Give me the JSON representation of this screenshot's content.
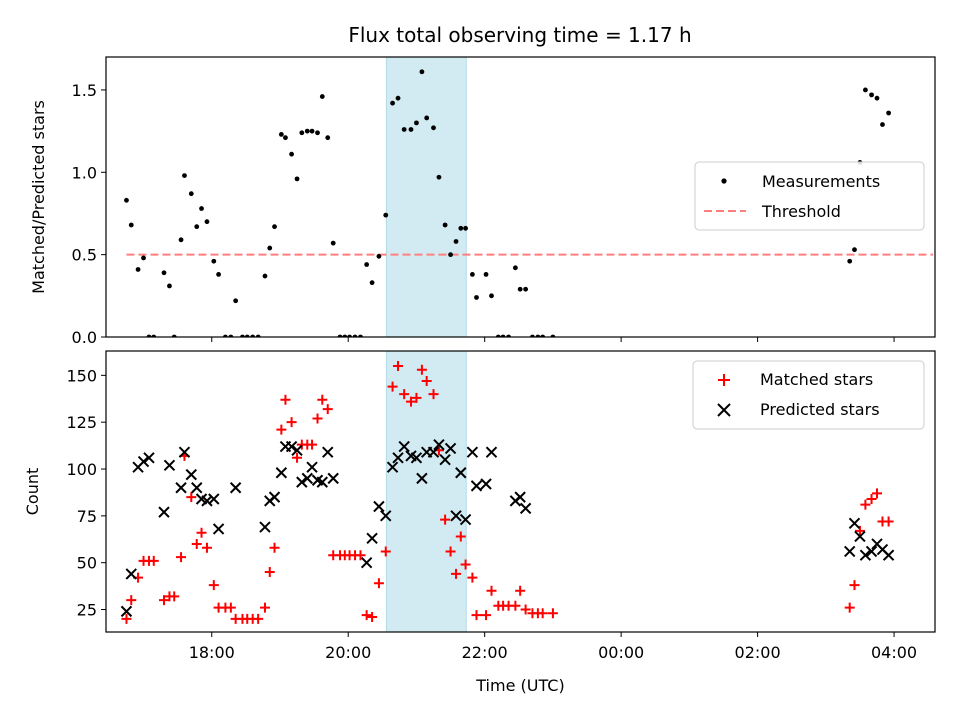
{
  "figure_title": "Flux total observing time = 1.17 h",
  "colors": {
    "measurement": "#000000",
    "threshold": "#ff7f7f",
    "matched": "#ff0000",
    "predicted": "#000000",
    "highlight": "#add8e6"
  },
  "chart_data": [
    {
      "type": "scatter",
      "panel": "top",
      "ylabel": "Matched/Predicted stars",
      "xlabel": "",
      "x_unit": "hours since 00:00 on the first day (UTC)",
      "xlim": [
        16.45,
        28.6
      ],
      "ylim": [
        0.0,
        1.7
      ],
      "x_ticks": [
        18,
        20,
        22,
        24,
        26,
        28
      ],
      "x_tick_labels": [
        "18:00",
        "20:00",
        "22:00",
        "00:00",
        "02:00",
        "04:00"
      ],
      "y_ticks": [
        0.0,
        0.5,
        1.0,
        1.5
      ],
      "y_tick_labels": [
        "0.0",
        "0.5",
        "1.0",
        "1.5"
      ],
      "shaded_interval": [
        20.56,
        21.73
      ],
      "threshold": {
        "name": "Threshold",
        "y": 0.5,
        "x_range": [
          16.75,
          28.9
        ]
      },
      "legend": {
        "position": "center-right",
        "entries": [
          "Measurements",
          "Threshold"
        ]
      },
      "series": [
        {
          "name": "Measurements",
          "points": [
            [
              16.75,
              0.83
            ],
            [
              16.82,
              0.68
            ],
            [
              16.92,
              0.41
            ],
            [
              17.0,
              0.48
            ],
            [
              17.08,
              0.0
            ],
            [
              17.15,
              0.0
            ],
            [
              17.3,
              0.39
            ],
            [
              17.38,
              0.31
            ],
            [
              17.45,
              0.0
            ],
            [
              17.55,
              0.59
            ],
            [
              17.6,
              0.98
            ],
            [
              17.7,
              0.87
            ],
            [
              17.78,
              0.67
            ],
            [
              17.85,
              0.78
            ],
            [
              17.93,
              0.7
            ],
            [
              18.03,
              0.46
            ],
            [
              18.1,
              0.38
            ],
            [
              18.2,
              0.0
            ],
            [
              18.28,
              0.0
            ],
            [
              18.35,
              0.22
            ],
            [
              18.45,
              0.0
            ],
            [
              18.52,
              0.0
            ],
            [
              18.6,
              0.0
            ],
            [
              18.68,
              0.0
            ],
            [
              18.78,
              0.37
            ],
            [
              18.85,
              0.54
            ],
            [
              18.92,
              0.67
            ],
            [
              19.02,
              1.23
            ],
            [
              19.08,
              1.21
            ],
            [
              19.17,
              1.11
            ],
            [
              19.25,
              0.96
            ],
            [
              19.32,
              1.24
            ],
            [
              19.4,
              1.25
            ],
            [
              19.47,
              1.25
            ],
            [
              19.55,
              1.24
            ],
            [
              19.62,
              1.46
            ],
            [
              19.7,
              1.21
            ],
            [
              19.78,
              0.57
            ],
            [
              19.88,
              0.0
            ],
            [
              19.95,
              0.0
            ],
            [
              20.02,
              0.0
            ],
            [
              20.1,
              0.0
            ],
            [
              20.18,
              0.0
            ],
            [
              20.27,
              0.44
            ],
            [
              20.35,
              0.33
            ],
            [
              20.45,
              0.49
            ],
            [
              20.55,
              0.74
            ],
            [
              20.65,
              1.42
            ],
            [
              20.73,
              1.45
            ],
            [
              20.82,
              1.26
            ],
            [
              20.92,
              1.26
            ],
            [
              21.0,
              1.3
            ],
            [
              21.08,
              1.61
            ],
            [
              21.15,
              1.33
            ],
            [
              21.25,
              1.27
            ],
            [
              21.33,
              0.97
            ],
            [
              21.42,
              0.68
            ],
            [
              21.5,
              0.5
            ],
            [
              21.58,
              0.58
            ],
            [
              21.65,
              0.66
            ],
            [
              21.72,
              0.66
            ],
            [
              21.82,
              0.38
            ],
            [
              21.88,
              0.24
            ],
            [
              22.02,
              0.38
            ],
            [
              22.1,
              0.25
            ],
            [
              22.2,
              0.0
            ],
            [
              22.27,
              0.0
            ],
            [
              22.35,
              0.0
            ],
            [
              22.45,
              0.42
            ],
            [
              22.52,
              0.29
            ],
            [
              22.6,
              0.29
            ],
            [
              22.7,
              0.0
            ],
            [
              22.78,
              0.0
            ],
            [
              22.85,
              0.0
            ],
            [
              23.0,
              0.0
            ],
            [
              27.35,
              0.46
            ],
            [
              27.42,
              0.53
            ],
            [
              27.5,
              1.06
            ],
            [
              27.58,
              1.5
            ],
            [
              27.67,
              1.47
            ],
            [
              27.75,
              1.45
            ],
            [
              27.83,
              1.29
            ],
            [
              27.92,
              1.36
            ]
          ]
        }
      ]
    },
    {
      "type": "scatter",
      "panel": "bottom",
      "ylabel": "Count",
      "xlabel": "Time (UTC)",
      "x_unit": "hours since 00:00 on the first day (UTC)",
      "xlim": [
        16.45,
        28.6
      ],
      "ylim": [
        13.0,
        163.0
      ],
      "x_ticks": [
        18,
        20,
        22,
        24,
        26,
        28
      ],
      "x_tick_labels": [
        "18:00",
        "20:00",
        "22:00",
        "00:00",
        "02:00",
        "04:00"
      ],
      "y_ticks": [
        25,
        50,
        75,
        100,
        125,
        150
      ],
      "y_tick_labels": [
        "25",
        "50",
        "75",
        "100",
        "125",
        "150"
      ],
      "shaded_interval": [
        20.56,
        21.73
      ],
      "legend": {
        "position": "top-right",
        "entries": [
          "Matched stars",
          "Predicted stars"
        ]
      },
      "series": [
        {
          "name": "Matched stars",
          "marker": "plus",
          "points": [
            [
              16.75,
              20
            ],
            [
              16.82,
              30
            ],
            [
              16.92,
              42
            ],
            [
              17.0,
              51
            ],
            [
              17.08,
              51
            ],
            [
              17.15,
              51
            ],
            [
              17.3,
              30
            ],
            [
              17.38,
              32
            ],
            [
              17.45,
              32
            ],
            [
              17.55,
              53
            ],
            [
              17.6,
              107
            ],
            [
              17.7,
              85
            ],
            [
              17.78,
              60
            ],
            [
              17.85,
              66
            ],
            [
              17.93,
              58
            ],
            [
              18.03,
              38
            ],
            [
              18.1,
              26
            ],
            [
              18.2,
              26
            ],
            [
              18.28,
              26
            ],
            [
              18.35,
              20
            ],
            [
              18.45,
              20
            ],
            [
              18.52,
              20
            ],
            [
              18.6,
              20
            ],
            [
              18.68,
              20
            ],
            [
              18.78,
              26
            ],
            [
              18.85,
              45
            ],
            [
              18.92,
              58
            ],
            [
              19.02,
              121
            ],
            [
              19.08,
              137
            ],
            [
              19.17,
              125
            ],
            [
              19.25,
              106
            ],
            [
              19.32,
              113
            ],
            [
              19.4,
              113
            ],
            [
              19.47,
              113
            ],
            [
              19.55,
              127
            ],
            [
              19.62,
              137
            ],
            [
              19.7,
              132
            ],
            [
              19.78,
              54
            ],
            [
              19.88,
              54
            ],
            [
              19.95,
              54
            ],
            [
              20.02,
              54
            ],
            [
              20.1,
              54
            ],
            [
              20.18,
              54
            ],
            [
              20.27,
              22
            ],
            [
              20.35,
              21
            ],
            [
              20.45,
              39
            ],
            [
              20.55,
              56
            ],
            [
              20.65,
              144
            ],
            [
              20.73,
              155
            ],
            [
              20.82,
              140
            ],
            [
              20.92,
              136
            ],
            [
              21.0,
              138
            ],
            [
              21.08,
              153
            ],
            [
              21.15,
              147
            ],
            [
              21.25,
              140
            ],
            [
              21.33,
              110
            ],
            [
              21.42,
              73
            ],
            [
              21.5,
              56
            ],
            [
              21.58,
              44
            ],
            [
              21.65,
              64
            ],
            [
              21.72,
              49
            ],
            [
              21.82,
              42
            ],
            [
              21.88,
              22
            ],
            [
              22.02,
              22
            ],
            [
              22.1,
              35
            ],
            [
              22.2,
              27
            ],
            [
              22.27,
              27
            ],
            [
              22.35,
              27
            ],
            [
              22.45,
              27
            ],
            [
              22.52,
              35
            ],
            [
              22.6,
              25
            ],
            [
              22.7,
              23
            ],
            [
              22.78,
              23
            ],
            [
              22.85,
              23
            ],
            [
              23.0,
              23
            ],
            [
              27.35,
              26
            ],
            [
              27.42,
              38
            ],
            [
              27.5,
              67
            ],
            [
              27.58,
              81
            ],
            [
              27.67,
              84
            ],
            [
              27.75,
              87
            ],
            [
              27.83,
              72
            ],
            [
              27.92,
              72
            ]
          ]
        },
        {
          "name": "Predicted stars",
          "marker": "x",
          "points": [
            [
              16.75,
              24
            ],
            [
              16.82,
              44
            ],
            [
              16.92,
              101
            ],
            [
              17.0,
              104
            ],
            [
              17.08,
              106
            ],
            [
              17.3,
              77
            ],
            [
              17.38,
              102
            ],
            [
              17.55,
              90
            ],
            [
              17.6,
              109
            ],
            [
              17.7,
              97
            ],
            [
              17.78,
              90
            ],
            [
              17.85,
              84
            ],
            [
              17.93,
              83
            ],
            [
              18.03,
              84
            ],
            [
              18.1,
              68
            ],
            [
              18.35,
              90
            ],
            [
              18.78,
              69
            ],
            [
              18.85,
              83
            ],
            [
              18.92,
              85
            ],
            [
              19.02,
              98
            ],
            [
              19.08,
              112
            ],
            [
              19.17,
              112
            ],
            [
              19.25,
              110
            ],
            [
              19.32,
              93
            ],
            [
              19.4,
              95
            ],
            [
              19.47,
              101
            ],
            [
              19.55,
              94
            ],
            [
              19.62,
              93
            ],
            [
              19.7,
              109
            ],
            [
              19.78,
              95
            ],
            [
              20.27,
              50
            ],
            [
              20.35,
              63
            ],
            [
              20.45,
              80
            ],
            [
              20.55,
              75
            ],
            [
              20.65,
              101
            ],
            [
              20.73,
              106
            ],
            [
              20.82,
              112
            ],
            [
              20.92,
              107
            ],
            [
              21.0,
              106
            ],
            [
              21.08,
              95
            ],
            [
              21.15,
              109
            ],
            [
              21.25,
              109
            ],
            [
              21.33,
              113
            ],
            [
              21.42,
              105
            ],
            [
              21.5,
              111
            ],
            [
              21.58,
              75
            ],
            [
              21.65,
              98
            ],
            [
              21.72,
              73
            ],
            [
              21.82,
              109
            ],
            [
              21.88,
              91
            ],
            [
              22.02,
              92
            ],
            [
              22.1,
              109
            ],
            [
              22.45,
              83
            ],
            [
              22.52,
              85
            ],
            [
              22.6,
              79
            ],
            [
              27.35,
              56
            ],
            [
              27.42,
              71
            ],
            [
              27.5,
              64
            ],
            [
              27.58,
              54
            ],
            [
              27.67,
              56
            ],
            [
              27.75,
              60
            ],
            [
              27.83,
              57
            ],
            [
              27.92,
              54
            ]
          ]
        }
      ]
    }
  ]
}
